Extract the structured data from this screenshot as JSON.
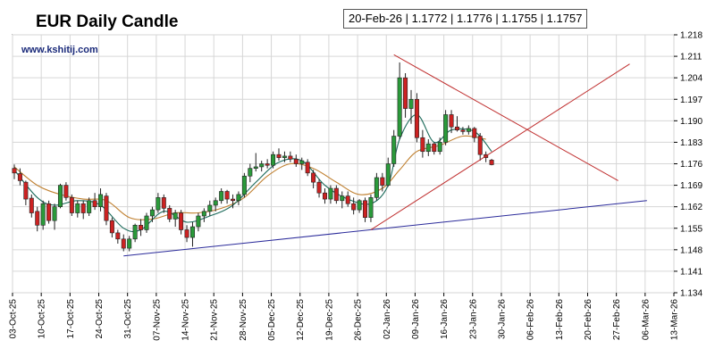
{
  "header": {
    "title": "EUR Daily Candle",
    "watermark": "www.kshitij.com",
    "ohlc_box": "20-Feb-26 | 1.1772 | 1.1776 | 1.1755 | 1.1757"
  },
  "chart_data": {
    "type": "candlestick",
    "title": "EUR Daily Candle",
    "ylim": [
      1.134,
      1.218
    ],
    "y_ticks": [
      "1.218",
      "1.211",
      "1.204",
      "1.197",
      "1.190",
      "1.183",
      "1.176",
      "1.169",
      "1.162",
      "1.155",
      "1.148",
      "1.141",
      "1.134"
    ],
    "x_ticks": [
      "03-Oct-25",
      "10-Oct-25",
      "17-Oct-25",
      "24-Oct-25",
      "31-Oct-25",
      "07-Nov-25",
      "14-Nov-25",
      "21-Nov-25",
      "28-Nov-25",
      "05-Dec-25",
      "12-Dec-25",
      "19-Dec-25",
      "26-Dec-25",
      "02-Jan-26",
      "09-Jan-26",
      "16-Jan-26",
      "23-Jan-26",
      "30-Jan-26",
      "06-Feb-26",
      "13-Feb-26",
      "20-Feb-26",
      "27-Feb-26",
      "06-Mar-26",
      "13-Mar-26"
    ],
    "grid": true,
    "colors": {
      "up": "#2a9a3a",
      "down": "#cc2222",
      "ma_fast": "#1a6a5a",
      "ma_slow": "#c08030",
      "trend_red": "#c03030",
      "trend_blue": "#2a2a9a"
    },
    "candles": [
      {
        "d": 0,
        "o": 1.1745,
        "h": 1.1758,
        "l": 1.171,
        "c": 1.173
      },
      {
        "d": 1,
        "o": 1.1728,
        "h": 1.1745,
        "l": 1.169,
        "c": 1.1705
      },
      {
        "d": 2,
        "o": 1.17,
        "h": 1.1705,
        "l": 1.1625,
        "c": 1.1645
      },
      {
        "d": 3,
        "o": 1.1648,
        "h": 1.166,
        "l": 1.1585,
        "c": 1.16
      },
      {
        "d": 4,
        "o": 1.1605,
        "h": 1.162,
        "l": 1.154,
        "c": 1.156
      },
      {
        "d": 5,
        "o": 1.156,
        "h": 1.164,
        "l": 1.1545,
        "c": 1.163
      },
      {
        "d": 6,
        "o": 1.163,
        "h": 1.164,
        "l": 1.1565,
        "c": 1.1575
      },
      {
        "d": 7,
        "o": 1.1575,
        "h": 1.163,
        "l": 1.1545,
        "c": 1.162
      },
      {
        "d": 8,
        "o": 1.162,
        "h": 1.1695,
        "l": 1.1615,
        "c": 1.169
      },
      {
        "d": 9,
        "o": 1.169,
        "h": 1.17,
        "l": 1.164,
        "c": 1.165
      },
      {
        "d": 10,
        "o": 1.165,
        "h": 1.166,
        "l": 1.159,
        "c": 1.16
      },
      {
        "d": 11,
        "o": 1.16,
        "h": 1.164,
        "l": 1.1585,
        "c": 1.163
      },
      {
        "d": 12,
        "o": 1.163,
        "h": 1.164,
        "l": 1.158,
        "c": 1.16
      },
      {
        "d": 13,
        "o": 1.16,
        "h": 1.165,
        "l": 1.159,
        "c": 1.164
      },
      {
        "d": 14,
        "o": 1.164,
        "h": 1.1665,
        "l": 1.161,
        "c": 1.162
      },
      {
        "d": 15,
        "o": 1.162,
        "h": 1.168,
        "l": 1.1605,
        "c": 1.166
      },
      {
        "d": 16,
        "o": 1.1655,
        "h": 1.1665,
        "l": 1.156,
        "c": 1.1575
      },
      {
        "d": 17,
        "o": 1.1575,
        "h": 1.1585,
        "l": 1.152,
        "c": 1.1535
      },
      {
        "d": 18,
        "o": 1.1535,
        "h": 1.1545,
        "l": 1.15,
        "c": 1.1515
      },
      {
        "d": 19,
        "o": 1.1515,
        "h": 1.153,
        "l": 1.1475,
        "c": 1.1485
      },
      {
        "d": 20,
        "o": 1.1485,
        "h": 1.1525,
        "l": 1.1475,
        "c": 1.1515
      },
      {
        "d": 21,
        "o": 1.1515,
        "h": 1.1565,
        "l": 1.1505,
        "c": 1.156
      },
      {
        "d": 22,
        "o": 1.156,
        "h": 1.158,
        "l": 1.1525,
        "c": 1.1545
      },
      {
        "d": 23,
        "o": 1.1545,
        "h": 1.16,
        "l": 1.1535,
        "c": 1.159
      },
      {
        "d": 24,
        "o": 1.159,
        "h": 1.162,
        "l": 1.157,
        "c": 1.161
      },
      {
        "d": 25,
        "o": 1.161,
        "h": 1.1665,
        "l": 1.16,
        "c": 1.165
      },
      {
        "d": 26,
        "o": 1.165,
        "h": 1.166,
        "l": 1.16,
        "c": 1.1615
      },
      {
        "d": 27,
        "o": 1.1615,
        "h": 1.1625,
        "l": 1.157,
        "c": 1.158
      },
      {
        "d": 28,
        "o": 1.158,
        "h": 1.161,
        "l": 1.1555,
        "c": 1.16
      },
      {
        "d": 29,
        "o": 1.16,
        "h": 1.161,
        "l": 1.153,
        "c": 1.1545
      },
      {
        "d": 30,
        "o": 1.1545,
        "h": 1.156,
        "l": 1.1505,
        "c": 1.152
      },
      {
        "d": 31,
        "o": 1.152,
        "h": 1.157,
        "l": 1.149,
        "c": 1.1555
      },
      {
        "d": 32,
        "o": 1.1555,
        "h": 1.16,
        "l": 1.154,
        "c": 1.159
      },
      {
        "d": 33,
        "o": 1.159,
        "h": 1.1615,
        "l": 1.157,
        "c": 1.1605
      },
      {
        "d": 34,
        "o": 1.1605,
        "h": 1.164,
        "l": 1.159,
        "c": 1.1625
      },
      {
        "d": 35,
        "o": 1.1625,
        "h": 1.165,
        "l": 1.1605,
        "c": 1.164
      },
      {
        "d": 36,
        "o": 1.164,
        "h": 1.168,
        "l": 1.163,
        "c": 1.167
      },
      {
        "d": 37,
        "o": 1.167,
        "h": 1.1675,
        "l": 1.163,
        "c": 1.1645
      },
      {
        "d": 38,
        "o": 1.1645,
        "h": 1.166,
        "l": 1.1615,
        "c": 1.164
      },
      {
        "d": 39,
        "o": 1.164,
        "h": 1.167,
        "l": 1.1625,
        "c": 1.166
      },
      {
        "d": 40,
        "o": 1.166,
        "h": 1.173,
        "l": 1.165,
        "c": 1.172
      },
      {
        "d": 41,
        "o": 1.172,
        "h": 1.176,
        "l": 1.17,
        "c": 1.1745
      },
      {
        "d": 42,
        "o": 1.1745,
        "h": 1.1795,
        "l": 1.1735,
        "c": 1.175
      },
      {
        "d": 43,
        "o": 1.175,
        "h": 1.177,
        "l": 1.1735,
        "c": 1.176
      },
      {
        "d": 44,
        "o": 1.176,
        "h": 1.1775,
        "l": 1.1745,
        "c": 1.1755
      },
      {
        "d": 45,
        "o": 1.1755,
        "h": 1.18,
        "l": 1.1745,
        "c": 1.179
      },
      {
        "d": 46,
        "o": 1.179,
        "h": 1.181,
        "l": 1.177,
        "c": 1.178
      },
      {
        "d": 47,
        "o": 1.178,
        "h": 1.18,
        "l": 1.1765,
        "c": 1.1785
      },
      {
        "d": 48,
        "o": 1.1785,
        "h": 1.18,
        "l": 1.1765,
        "c": 1.1775
      },
      {
        "d": 49,
        "o": 1.1775,
        "h": 1.179,
        "l": 1.175,
        "c": 1.176
      },
      {
        "d": 50,
        "o": 1.176,
        "h": 1.178,
        "l": 1.174,
        "c": 1.177
      },
      {
        "d": 51,
        "o": 1.1765,
        "h": 1.1775,
        "l": 1.172,
        "c": 1.173
      },
      {
        "d": 52,
        "o": 1.173,
        "h": 1.174,
        "l": 1.168,
        "c": 1.17
      },
      {
        "d": 53,
        "o": 1.17,
        "h": 1.171,
        "l": 1.165,
        "c": 1.1665
      },
      {
        "d": 54,
        "o": 1.1665,
        "h": 1.168,
        "l": 1.163,
        "c": 1.1645
      },
      {
        "d": 55,
        "o": 1.1645,
        "h": 1.169,
        "l": 1.163,
        "c": 1.168
      },
      {
        "d": 56,
        "o": 1.168,
        "h": 1.169,
        "l": 1.163,
        "c": 1.164
      },
      {
        "d": 57,
        "o": 1.164,
        "h": 1.167,
        "l": 1.1615,
        "c": 1.1655
      },
      {
        "d": 58,
        "o": 1.1655,
        "h": 1.167,
        "l": 1.162,
        "c": 1.163
      },
      {
        "d": 59,
        "o": 1.163,
        "h": 1.165,
        "l": 1.1595,
        "c": 1.161
      },
      {
        "d": 60,
        "o": 1.161,
        "h": 1.1645,
        "l": 1.16,
        "c": 1.164
      },
      {
        "d": 61,
        "o": 1.164,
        "h": 1.165,
        "l": 1.157,
        "c": 1.1585
      },
      {
        "d": 62,
        "o": 1.1585,
        "h": 1.166,
        "l": 1.157,
        "c": 1.165
      },
      {
        "d": 63,
        "o": 1.165,
        "h": 1.173,
        "l": 1.164,
        "c": 1.1715
      },
      {
        "d": 64,
        "o": 1.1715,
        "h": 1.173,
        "l": 1.167,
        "c": 1.169
      },
      {
        "d": 65,
        "o": 1.169,
        "h": 1.178,
        "l": 1.1685,
        "c": 1.176
      },
      {
        "d": 66,
        "o": 1.176,
        "h": 1.187,
        "l": 1.175,
        "c": 1.185
      },
      {
        "d": 67,
        "o": 1.185,
        "h": 1.209,
        "l": 1.184,
        "c": 1.204
      },
      {
        "d": 68,
        "o": 1.204,
        "h": 1.2055,
        "l": 1.191,
        "c": 1.194
      },
      {
        "d": 69,
        "o": 1.194,
        "h": 1.2,
        "l": 1.189,
        "c": 1.197
      },
      {
        "d": 70,
        "o": 1.197,
        "h": 1.199,
        "l": 1.183,
        "c": 1.1845
      },
      {
        "d": 71,
        "o": 1.1845,
        "h": 1.187,
        "l": 1.178,
        "c": 1.18
      },
      {
        "d": 72,
        "o": 1.18,
        "h": 1.184,
        "l": 1.1785,
        "c": 1.1825
      },
      {
        "d": 73,
        "o": 1.1825,
        "h": 1.183,
        "l": 1.179,
        "c": 1.18
      },
      {
        "d": 74,
        "o": 1.18,
        "h": 1.1845,
        "l": 1.179,
        "c": 1.183
      },
      {
        "d": 75,
        "o": 1.183,
        "h": 1.1935,
        "l": 1.182,
        "c": 1.192
      },
      {
        "d": 76,
        "o": 1.192,
        "h": 1.1935,
        "l": 1.186,
        "c": 1.188
      },
      {
        "d": 77,
        "o": 1.188,
        "h": 1.1915,
        "l": 1.1865,
        "c": 1.187
      },
      {
        "d": 78,
        "o": 1.187,
        "h": 1.188,
        "l": 1.1855,
        "c": 1.1865
      },
      {
        "d": 79,
        "o": 1.1865,
        "h": 1.1885,
        "l": 1.1855,
        "c": 1.1875
      },
      {
        "d": 80,
        "o": 1.1875,
        "h": 1.188,
        "l": 1.183,
        "c": 1.1845
      },
      {
        "d": 81,
        "o": 1.185,
        "h": 1.186,
        "l": 1.177,
        "c": 1.179
      },
      {
        "d": 82,
        "o": 1.179,
        "h": 1.18,
        "l": 1.1765,
        "c": 1.178
      },
      {
        "d": 83,
        "o": 1.1772,
        "h": 1.1776,
        "l": 1.1755,
        "c": 1.1757
      }
    ],
    "ma_fast": [
      [
        0,
        1.174
      ],
      [
        4,
        1.165
      ],
      [
        7,
        1.1625
      ],
      [
        11,
        1.164
      ],
      [
        15,
        1.1625
      ],
      [
        19,
        1.155
      ],
      [
        22,
        1.1545
      ],
      [
        26,
        1.1605
      ],
      [
        30,
        1.157
      ],
      [
        34,
        1.159
      ],
      [
        38,
        1.1625
      ],
      [
        42,
        1.17
      ],
      [
        46,
        1.1765
      ],
      [
        50,
        1.177
      ],
      [
        54,
        1.169
      ],
      [
        58,
        1.1645
      ],
      [
        62,
        1.163
      ],
      [
        65,
        1.169
      ],
      [
        67,
        1.184
      ],
      [
        70,
        1.192
      ],
      [
        73,
        1.183
      ],
      [
        76,
        1.187
      ],
      [
        80,
        1.1865
      ],
      [
        83,
        1.18
      ]
    ],
    "ma_slow": [
      [
        0,
        1.175
      ],
      [
        4,
        1.169
      ],
      [
        8,
        1.166
      ],
      [
        12,
        1.1645
      ],
      [
        16,
        1.164
      ],
      [
        20,
        1.1585
      ],
      [
        24,
        1.158
      ],
      [
        28,
        1.16
      ],
      [
        32,
        1.16
      ],
      [
        36,
        1.1615
      ],
      [
        40,
        1.165
      ],
      [
        44,
        1.172
      ],
      [
        48,
        1.176
      ],
      [
        52,
        1.1745
      ],
      [
        56,
        1.17
      ],
      [
        60,
        1.166
      ],
      [
        64,
        1.168
      ],
      [
        67,
        1.174
      ],
      [
        70,
        1.18
      ],
      [
        74,
        1.182
      ],
      [
        78,
        1.185
      ],
      [
        82,
        1.184
      ]
    ],
    "trendlines": [
      {
        "color": "trend_blue",
        "from": [
          19,
          1.146
        ],
        "to": [
          110,
          1.164
        ]
      },
      {
        "color": "trend_red",
        "from": [
          66,
          1.2115
        ],
        "to": [
          105,
          1.1705
        ]
      },
      {
        "color": "trend_red",
        "from": [
          62,
          1.1545
        ],
        "to": [
          107,
          1.2085
        ]
      }
    ]
  }
}
